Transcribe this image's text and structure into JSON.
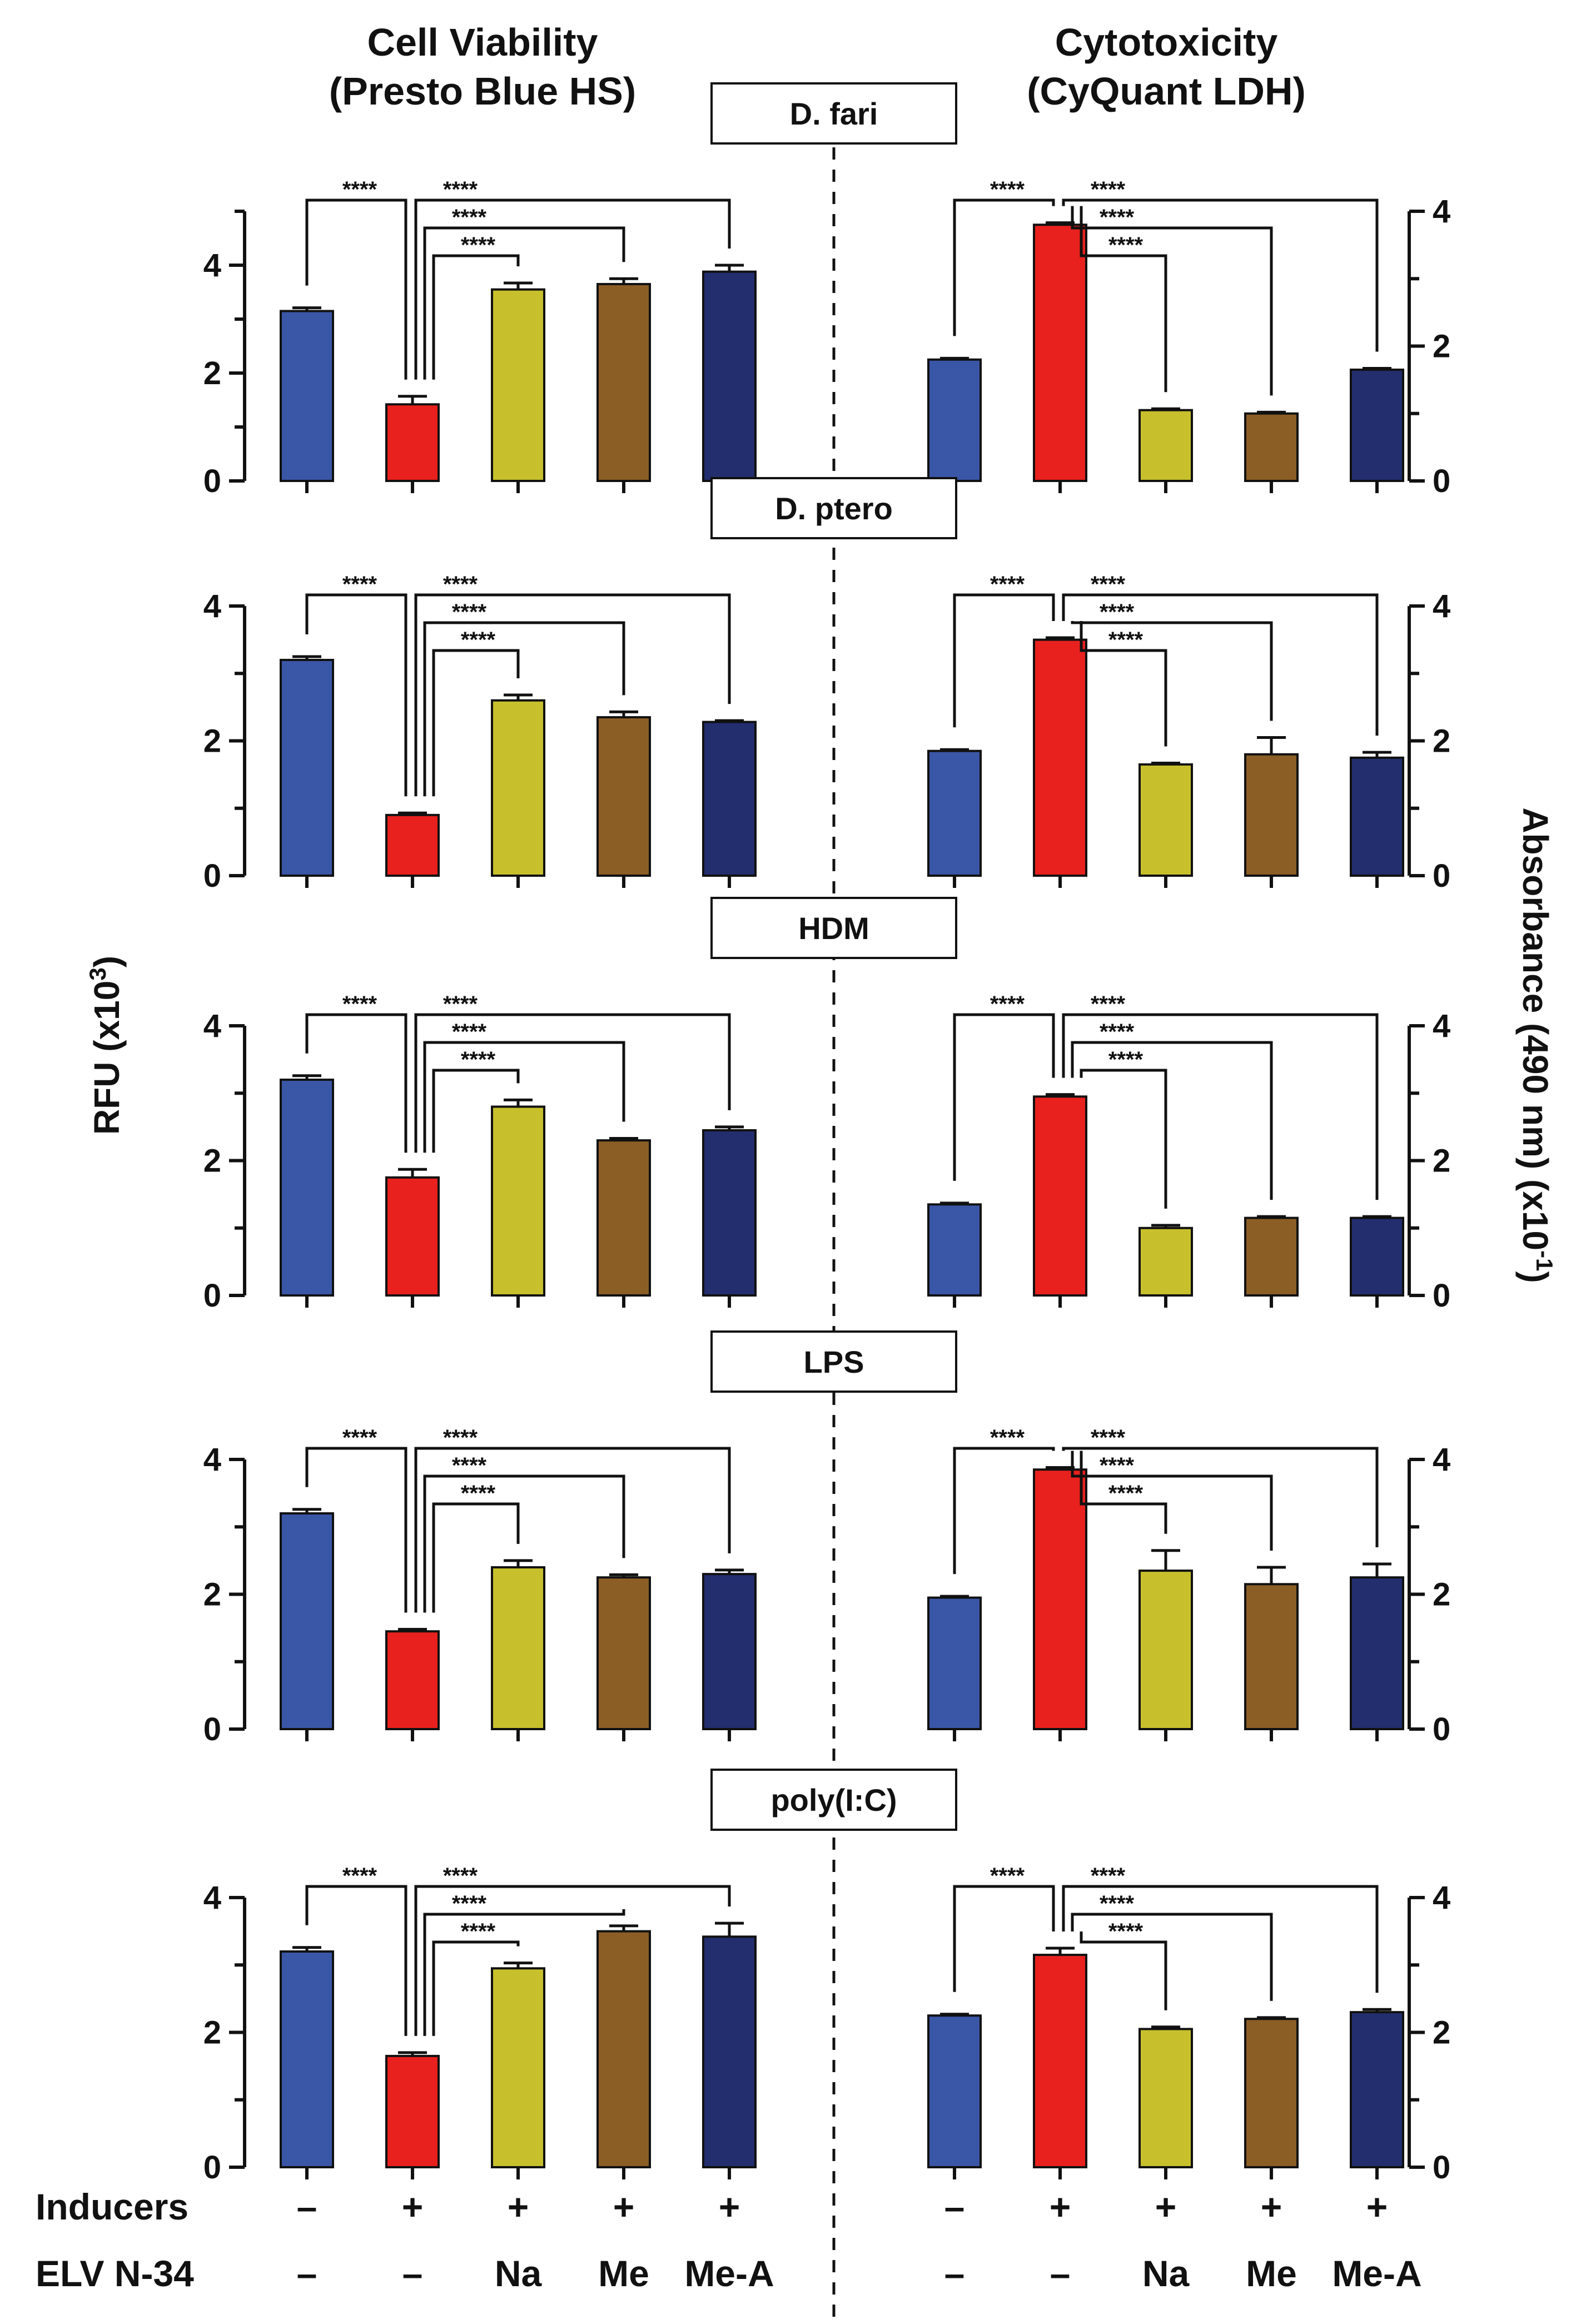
{
  "headers": {
    "left_line1": "Cell Viability",
    "left_line2": "(Presto Blue HS)",
    "right_line1": "Cytotoxicity",
    "right_line2": "(CyQuant LDH)"
  },
  "axis_labels": {
    "left": "RFU (x10",
    "left_sup": "3",
    "left_end": ")",
    "right": "Absorbance (490 nm) (x10",
    "right_sup": "-1",
    "right_end": ")"
  },
  "significance_label": "****",
  "colors": [
    "#3a56a6",
    "#e8211e",
    "#c7c02c",
    "#8b5e25",
    "#232e6e"
  ],
  "bottom_labels": {
    "inducers_label": "Inducers",
    "elv_label": "ELV N-34",
    "inducers": [
      "–",
      "+",
      "+",
      "+",
      "+"
    ],
    "elv": [
      "–",
      "–",
      "Na",
      "Me",
      "Me-A"
    ]
  },
  "chart_data": [
    {
      "type": "bar",
      "panel": "D. fari",
      "side": "left",
      "title": "D. fari",
      "ylabel": "RFU (x10³)",
      "ylim": [
        0,
        5
      ],
      "yticks": [
        0,
        2,
        4
      ],
      "categories": [
        "-/-",
        "+/-",
        "+/Na",
        "+/Me",
        "+/Me-A"
      ],
      "values": [
        3.15,
        1.42,
        3.55,
        3.65,
        3.88
      ],
      "errors": [
        0.06,
        0.15,
        0.12,
        0.1,
        0.12
      ]
    },
    {
      "type": "bar",
      "panel": "D. fari",
      "side": "right",
      "title": "D. fari",
      "ylabel": "Absorbance (490 nm) (x10⁻¹)",
      "ylim": [
        0,
        4
      ],
      "yticks": [
        0,
        2,
        4
      ],
      "categories": [
        "-/-",
        "+/-",
        "+/Na",
        "+/Me",
        "+/Me-A"
      ],
      "values": [
        1.8,
        3.8,
        1.05,
        1.0,
        1.65
      ],
      "errors": [
        0.02,
        0.03,
        0.02,
        0.02,
        0.02
      ]
    },
    {
      "type": "bar",
      "panel": "D. ptero",
      "side": "left",
      "title": "D. ptero",
      "ylabel": "RFU (x10³)",
      "ylim": [
        0,
        4
      ],
      "yticks": [
        0,
        2,
        4
      ],
      "categories": [
        "-/-",
        "+/-",
        "+/Na",
        "+/Me",
        "+/Me-A"
      ],
      "values": [
        3.2,
        0.9,
        2.6,
        2.35,
        2.28
      ],
      "errors": [
        0.05,
        0.03,
        0.08,
        0.08,
        0.02
      ]
    },
    {
      "type": "bar",
      "panel": "D. ptero",
      "side": "right",
      "title": "D. ptero",
      "ylabel": "Absorbance (490 nm) (x10⁻¹)",
      "ylim": [
        0,
        4
      ],
      "yticks": [
        0,
        2,
        4
      ],
      "categories": [
        "-/-",
        "+/-",
        "+/Na",
        "+/Me",
        "+/Me-A"
      ],
      "values": [
        1.85,
        3.5,
        1.65,
        1.8,
        1.75
      ],
      "errors": [
        0.02,
        0.03,
        0.02,
        0.25,
        0.08
      ]
    },
    {
      "type": "bar",
      "panel": "HDM",
      "side": "left",
      "title": "HDM",
      "ylabel": "RFU (x10³)",
      "ylim": [
        0,
        4
      ],
      "yticks": [
        0,
        2,
        4
      ],
      "categories": [
        "-/-",
        "+/-",
        "+/Na",
        "+/Me",
        "+/Me-A"
      ],
      "values": [
        3.2,
        1.75,
        2.8,
        2.3,
        2.45
      ],
      "errors": [
        0.06,
        0.12,
        0.1,
        0.03,
        0.05
      ]
    },
    {
      "type": "bar",
      "panel": "HDM",
      "side": "right",
      "title": "HDM",
      "ylabel": "Absorbance (490 nm) (x10⁻¹)",
      "ylim": [
        0,
        4
      ],
      "yticks": [
        0,
        2,
        4
      ],
      "categories": [
        "-/-",
        "+/-",
        "+/Na",
        "+/Me",
        "+/Me-A"
      ],
      "values": [
        1.35,
        2.95,
        1.0,
        1.15,
        1.15
      ],
      "errors": [
        0.02,
        0.03,
        0.04,
        0.02,
        0.02
      ]
    },
    {
      "type": "bar",
      "panel": "LPS",
      "side": "left",
      "title": "LPS",
      "ylabel": "RFU (x10³)",
      "ylim": [
        0,
        4
      ],
      "yticks": [
        0,
        2,
        4
      ],
      "categories": [
        "-/-",
        "+/-",
        "+/Na",
        "+/Me",
        "+/Me-A"
      ],
      "values": [
        3.2,
        1.45,
        2.4,
        2.25,
        2.3
      ],
      "errors": [
        0.06,
        0.03,
        0.1,
        0.04,
        0.06
      ]
    },
    {
      "type": "bar",
      "panel": "LPS",
      "side": "right",
      "title": "LPS",
      "ylabel": "Absorbance (490 nm) (x10⁻¹)",
      "ylim": [
        0,
        4
      ],
      "yticks": [
        0,
        2,
        4
      ],
      "categories": [
        "-/-",
        "+/-",
        "+/Na",
        "+/Me",
        "+/Me-A"
      ],
      "values": [
        1.95,
        3.85,
        2.35,
        2.15,
        2.25
      ],
      "errors": [
        0.02,
        0.03,
        0.3,
        0.25,
        0.2
      ]
    },
    {
      "type": "bar",
      "panel": "poly(I:C)",
      "side": "left",
      "title": "poly(I:C)",
      "ylabel": "RFU (x10³)",
      "ylim": [
        0,
        4
      ],
      "yticks": [
        0,
        2,
        4
      ],
      "categories": [
        "-/-",
        "+/-",
        "+/Na",
        "+/Me",
        "+/Me-A"
      ],
      "values": [
        3.2,
        1.65,
        2.95,
        3.5,
        3.42
      ],
      "errors": [
        0.06,
        0.05,
        0.08,
        0.08,
        0.2
      ]
    },
    {
      "type": "bar",
      "panel": "poly(I:C)",
      "side": "right",
      "title": "poly(I:C)",
      "ylabel": "Absorbance (490 nm) (x10⁻¹)",
      "ylim": [
        0,
        4
      ],
      "yticks": [
        0,
        2,
        4
      ],
      "categories": [
        "-/-",
        "+/-",
        "+/Na",
        "+/Me",
        "+/Me-A"
      ],
      "values": [
        2.25,
        3.15,
        2.05,
        2.2,
        2.3
      ],
      "errors": [
        0.02,
        0.1,
        0.03,
        0.02,
        0.04
      ]
    }
  ]
}
